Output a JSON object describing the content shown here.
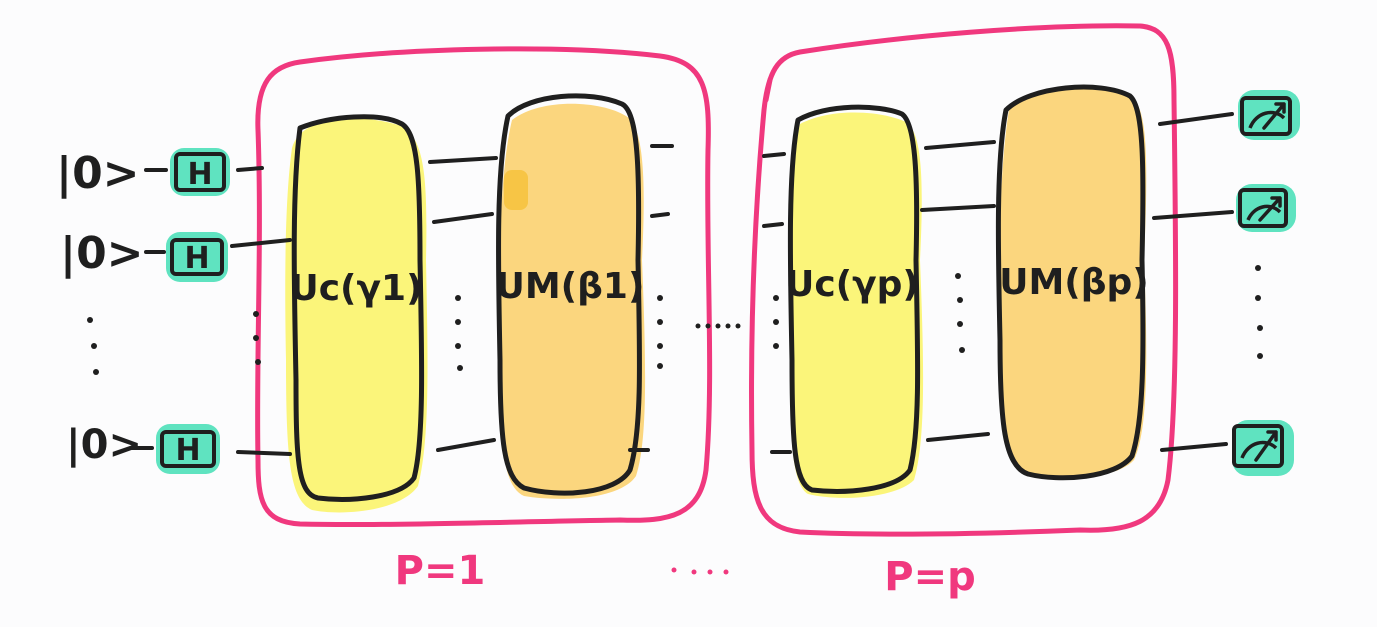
{
  "colors": {
    "ink": "#1f1f1f",
    "pink": "#f0387e",
    "teal": "#5fe3c0",
    "yellow": "#fbf57a",
    "orange": "#fbd67e",
    "orange_dark": "#f7c545"
  },
  "qubits": {
    "ket_1": "|0>",
    "ket_2": "|0>",
    "ket_3": "|0>",
    "gate_label": "H"
  },
  "layer_1": {
    "cost_label": "Uc(γ1)",
    "mixer_label": "UM(β1)",
    "p_label": "P=1"
  },
  "layer_p": {
    "cost_label": "Uc(γp)",
    "mixer_label": "UM(βp)",
    "p_label": "P=p"
  },
  "icons": {
    "measure": "measure-meter-icon"
  }
}
